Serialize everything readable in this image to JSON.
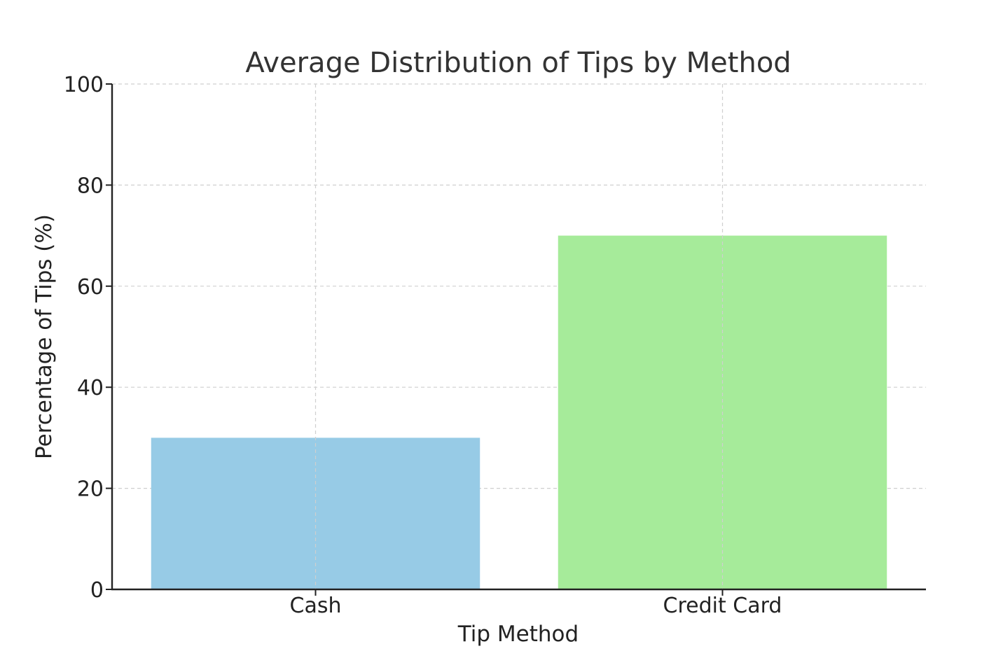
{
  "chart_data": {
    "type": "bar",
    "title": "Average Distribution of Tips by Method",
    "xlabel": "Tip Method",
    "ylabel": "Percentage of Tips (%)",
    "categories": [
      "Cash",
      "Credit Card"
    ],
    "values": [
      30,
      70
    ],
    "colors": [
      "#97cbe6",
      "#a6eb9a"
    ],
    "ylim": [
      0,
      100
    ],
    "yticks": [
      0,
      20,
      40,
      60,
      80,
      100
    ],
    "grid": true,
    "legend": "none"
  }
}
